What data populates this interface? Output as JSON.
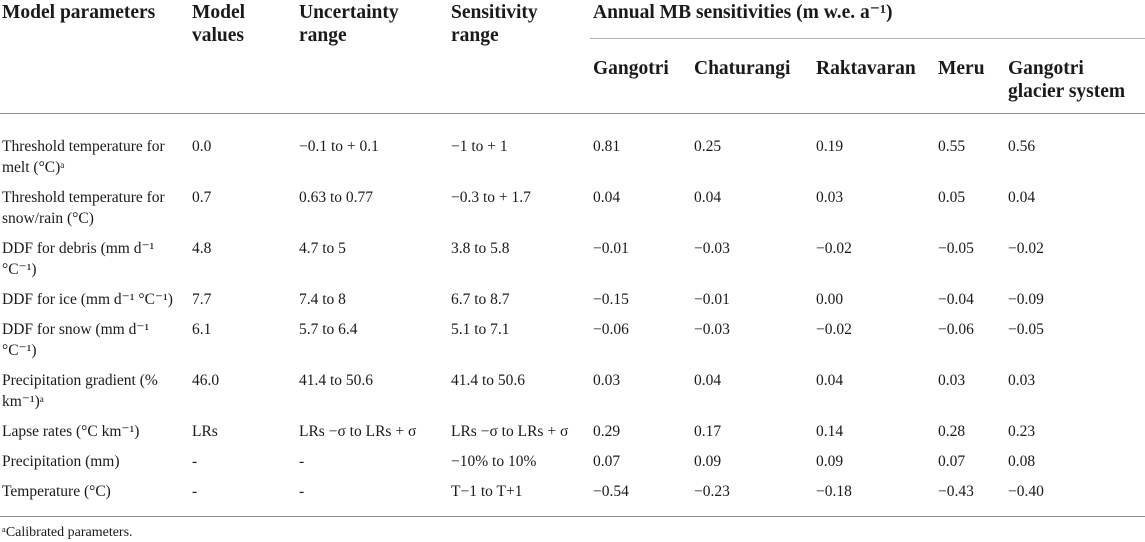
{
  "header": {
    "col0": "Model parameters",
    "col1": "Model values",
    "col2": "Uncertainty range",
    "col3": "Sensitivity range",
    "group": "Annual MB sensitivities (m w.e. a⁻¹)",
    "col4": "Gangotri",
    "col5": "Chaturangi",
    "col6": "Raktavaran",
    "col7": "Meru",
    "col8": "Gangotri glacier system"
  },
  "rows": [
    {
      "param": "Threshold temperature for melt (°C)ᵃ",
      "model": "0.0",
      "unc": "−0.1 to + 0.1",
      "sens": "−1 to + 1",
      "gangotri": "0.81",
      "chaturangi": "0.25",
      "raktavaran": "0.19",
      "meru": "0.55",
      "system": "0.56"
    },
    {
      "param": "Threshold temperature for snow/rain (°C)",
      "model": "0.7",
      "unc": "0.63 to 0.77",
      "sens": "−0.3 to + 1.7",
      "gangotri": "0.04",
      "chaturangi": "0.04",
      "raktavaran": "0.03",
      "meru": "0.05",
      "system": "0.04"
    },
    {
      "param": "DDF for debris (mm d⁻¹ °C⁻¹)",
      "model": "4.8",
      "unc": "4.7 to 5",
      "sens": "3.8 to 5.8",
      "gangotri": "−0.01",
      "chaturangi": "−0.03",
      "raktavaran": "−0.02",
      "meru": "−0.05",
      "system": "−0.02"
    },
    {
      "param": "DDF for ice (mm d⁻¹ °C⁻¹)",
      "model": "7.7",
      "unc": "7.4 to 8",
      "sens": "6.7 to 8.7",
      "gangotri": "−0.15",
      "chaturangi": "−0.01",
      "raktavaran": "0.00",
      "meru": "−0.04",
      "system": "−0.09"
    },
    {
      "param": "DDF for snow (mm d⁻¹ °C⁻¹)",
      "model": "6.1",
      "unc": "5.7 to 6.4",
      "sens": "5.1 to 7.1",
      "gangotri": "−0.06",
      "chaturangi": "−0.03",
      "raktavaran": "−0.02",
      "meru": "−0.06",
      "system": "−0.05"
    },
    {
      "param": "Precipitation gradient (% km⁻¹)ᵃ",
      "model": "46.0",
      "unc": "41.4 to 50.6",
      "sens": "41.4 to 50.6",
      "gangotri": "0.03",
      "chaturangi": "0.04",
      "raktavaran": "0.04",
      "meru": "0.03",
      "system": "0.03"
    },
    {
      "param": "Lapse rates (°C km⁻¹)",
      "model": "LRs",
      "unc": "LRs −σ to LRs + σ",
      "sens": "LRs −σ to LRs + σ",
      "gangotri": "0.29",
      "chaturangi": "0.17",
      "raktavaran": "0.14",
      "meru": "0.28",
      "system": "0.23"
    },
    {
      "param": "Precipitation (mm)",
      "model": "-",
      "unc": "-",
      "sens": "−10% to 10%",
      "gangotri": "0.07",
      "chaturangi": "0.09",
      "raktavaran": "0.09",
      "meru": "0.07",
      "system": "0.08"
    },
    {
      "param": "Temperature (°C)",
      "model": "-",
      "unc": "-",
      "sens": "T−1 to T+1",
      "gangotri": "−0.54",
      "chaturangi": "−0.23",
      "raktavaran": "−0.18",
      "meru": "−0.43",
      "system": "−0.40"
    }
  ],
  "footnote": "ᵃCalibrated parameters."
}
